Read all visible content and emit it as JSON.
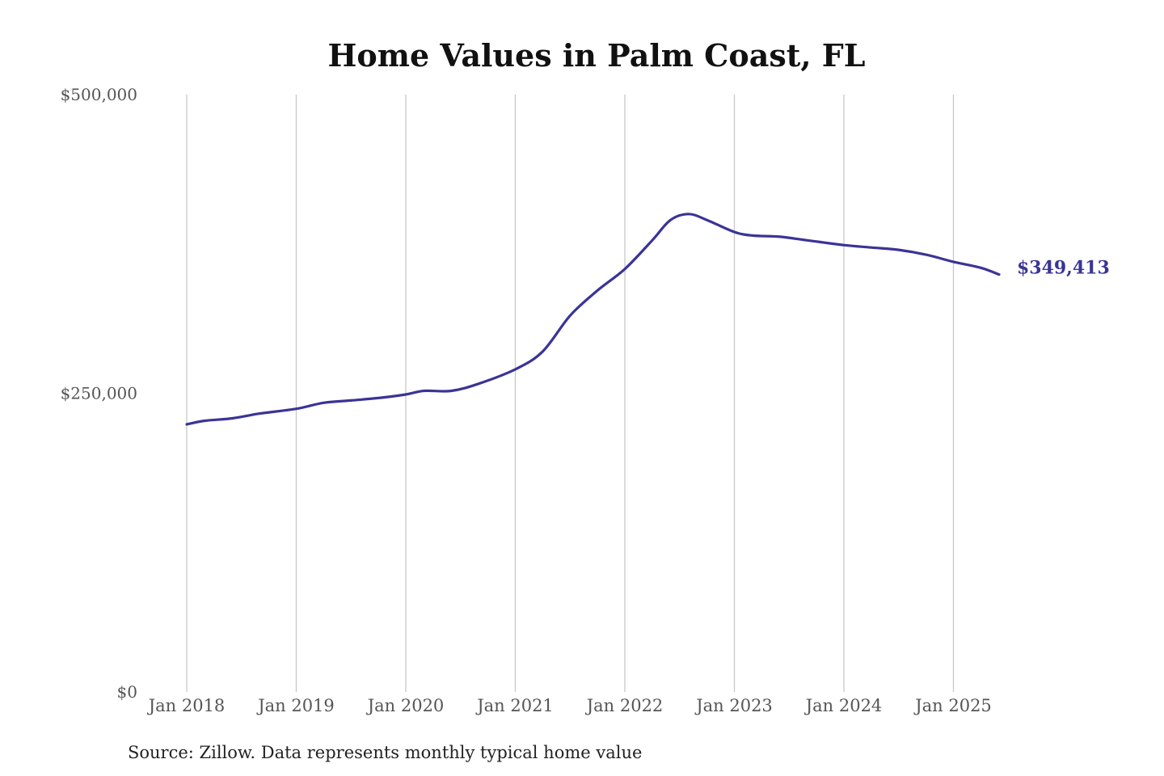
{
  "chart_data": {
    "type": "line",
    "title": "Home Values in Palm Coast, FL",
    "xlabel": "",
    "ylabel": "",
    "ylim": [
      0,
      500000
    ],
    "xlim": [
      "2018-01",
      "2025-06"
    ],
    "y_ticks": [
      {
        "value": 0,
        "label": "$0"
      },
      {
        "value": 250000,
        "label": "$250,000"
      },
      {
        "value": 500000,
        "label": "$500,000"
      }
    ],
    "x_ticks": [
      {
        "value": "2018-01",
        "label": "Jan 2018"
      },
      {
        "value": "2019-01",
        "label": "Jan 2019"
      },
      {
        "value": "2020-01",
        "label": "Jan 2020"
      },
      {
        "value": "2021-01",
        "label": "Jan 2021"
      },
      {
        "value": "2022-01",
        "label": "Jan 2022"
      },
      {
        "value": "2023-01",
        "label": "Jan 2023"
      },
      {
        "value": "2024-01",
        "label": "Jan 2024"
      },
      {
        "value": "2025-01",
        "label": "Jan 2025"
      }
    ],
    "grid": "vertical",
    "series": [
      {
        "color": "#3a3497",
        "end_label": "$349,413",
        "points": [
          {
            "x": "2018-01",
            "y": 224000
          },
          {
            "x": "2018-03",
            "y": 227000
          },
          {
            "x": "2018-06",
            "y": 229000
          },
          {
            "x": "2018-09",
            "y": 233000
          },
          {
            "x": "2019-01",
            "y": 237000
          },
          {
            "x": "2019-04",
            "y": 242000
          },
          {
            "x": "2019-07",
            "y": 244000
          },
          {
            "x": "2019-10",
            "y": 246000
          },
          {
            "x": "2020-01",
            "y": 249000
          },
          {
            "x": "2020-03",
            "y": 252000
          },
          {
            "x": "2020-06",
            "y": 252000
          },
          {
            "x": "2020-09",
            "y": 258000
          },
          {
            "x": "2021-01",
            "y": 270000
          },
          {
            "x": "2021-04",
            "y": 285000
          },
          {
            "x": "2021-07",
            "y": 315000
          },
          {
            "x": "2021-10",
            "y": 336000
          },
          {
            "x": "2022-01",
            "y": 354000
          },
          {
            "x": "2022-04",
            "y": 378000
          },
          {
            "x": "2022-06",
            "y": 395000
          },
          {
            "x": "2022-08",
            "y": 400000
          },
          {
            "x": "2022-10",
            "y": 395000
          },
          {
            "x": "2023-01",
            "y": 385000
          },
          {
            "x": "2023-03",
            "y": 382000
          },
          {
            "x": "2023-06",
            "y": 381000
          },
          {
            "x": "2023-09",
            "y": 378000
          },
          {
            "x": "2024-01",
            "y": 374000
          },
          {
            "x": "2024-04",
            "y": 372000
          },
          {
            "x": "2024-07",
            "y": 370000
          },
          {
            "x": "2024-10",
            "y": 366000
          },
          {
            "x": "2025-01",
            "y": 360000
          },
          {
            "x": "2025-04",
            "y": 355000
          },
          {
            "x": "2025-06",
            "y": 349413
          }
        ]
      }
    ]
  },
  "footer": {
    "source": "Source: Zillow. Data represents monthly typical home value"
  }
}
